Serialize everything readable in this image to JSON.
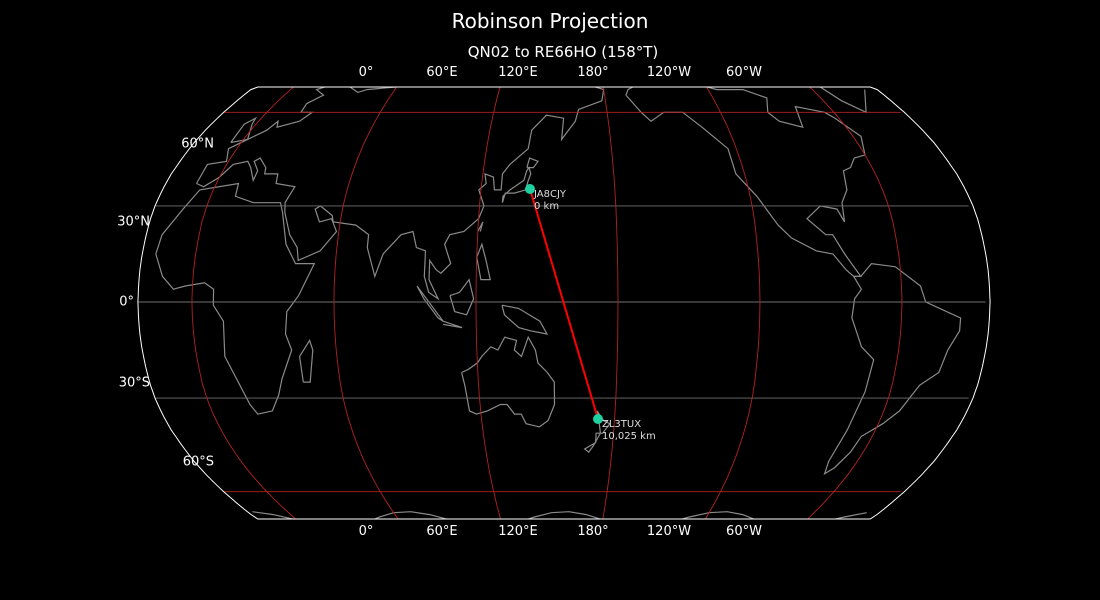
{
  "title": "Robinson Projection",
  "subtitle": "QN02 to RE66HO (158°T)",
  "lon_ticks_top": [
    "0°",
    "60°E",
    "120°E",
    "180°",
    "120°W",
    "60°W"
  ],
  "lon_ticks_bottom": [
    "0°",
    "60°E",
    "120°E",
    "180°",
    "120°W",
    "60°W"
  ],
  "lat_ticks": [
    "60°N",
    "30°N",
    "0°",
    "30°S",
    "60°S"
  ],
  "projection": "Robinson",
  "central_longitude": 157,
  "colors": {
    "background": "#000000",
    "coastline": "#8a8a8a",
    "graticule_major": "#b22222",
    "graticule_minor": "#707070",
    "route": "#ff0000",
    "marker": "#1fd1a0",
    "outline": "#ffffff"
  },
  "stations": [
    {
      "call": "JA8CJY",
      "distance": "0 km"
    },
    {
      "call": "ZL3TUX",
      "distance": "10,025 km"
    }
  ]
}
